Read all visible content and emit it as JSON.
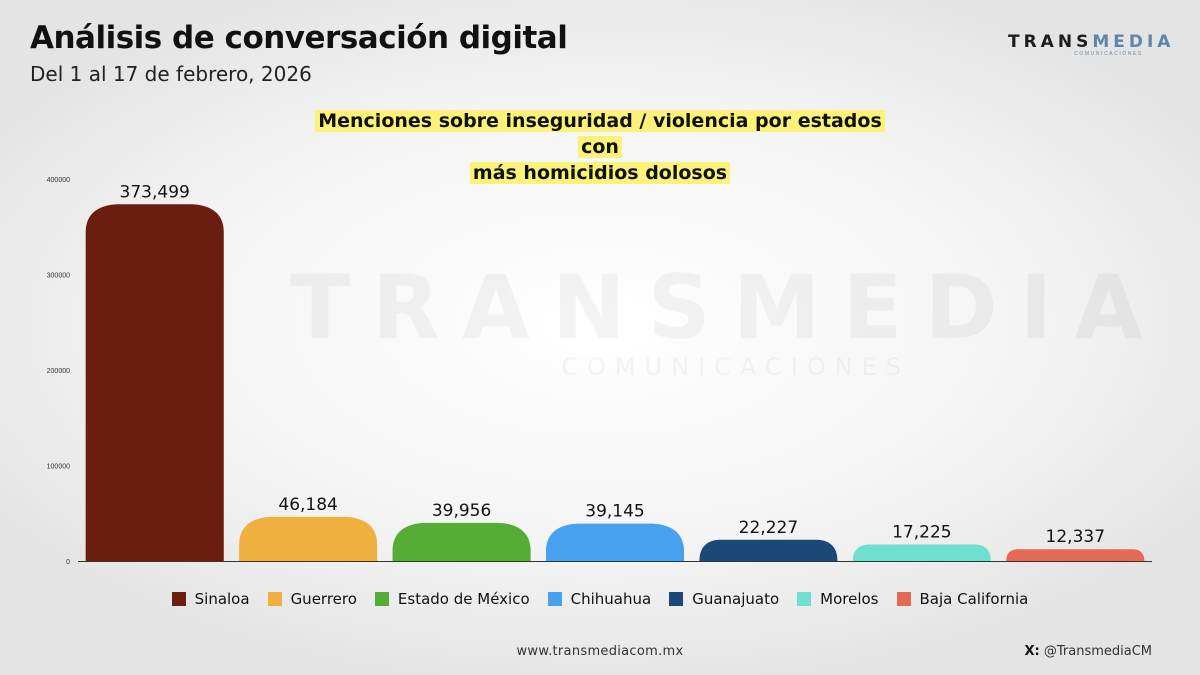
{
  "header": {
    "title": "Análisis de conversación digital",
    "subtitle": "Del 1 al 17 de febrero, 2026"
  },
  "logo": {
    "part1": "TRANS",
    "part2": "MEDIA",
    "sub": "COMUNICACIONES"
  },
  "watermark": {
    "main": "TRANSMEDIA",
    "sub": "COMUNICACIONES"
  },
  "footer": {
    "url": "www.transmediacom.mx",
    "social_prefix": "X:",
    "social_handle": "@TransmediaCM"
  },
  "chart_data": {
    "type": "bar",
    "title_line1": "Menciones sobre inseguridad / violencia por estados con",
    "title_line2": "más homicidios dolosos",
    "categories": [
      "Sinaloa",
      "Guerrero",
      "Estado de México",
      "Chihuahua",
      "Guanajuato",
      "Morelos",
      "Baja California"
    ],
    "values": [
      373499,
      46184,
      39956,
      39145,
      22227,
      17225,
      12337
    ],
    "value_labels": [
      "373,499",
      "46,184",
      "39,956",
      "39,145",
      "22,227",
      "17,225",
      "12,337"
    ],
    "colors": [
      "#6b1d10",
      "#f0b040",
      "#55ad35",
      "#48a0f0",
      "#1c4878",
      "#6fe0cf",
      "#e56a55"
    ],
    "ylim": [
      0,
      400000
    ],
    "yticks": [
      0,
      100000,
      200000,
      300000,
      400000
    ],
    "ytick_labels": [
      "0",
      "100000",
      "200000",
      "300000",
      "400000"
    ],
    "legend_position": "bottom",
    "grid": false
  }
}
